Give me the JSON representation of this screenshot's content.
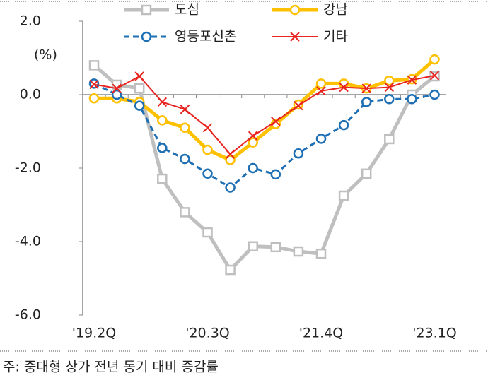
{
  "chart_data": {
    "type": "line",
    "y_label": "(%)",
    "footnote": "주: 중대형 상가 전년 동기 대비 증감률",
    "categories": [
      "'19.2Q",
      null,
      null,
      null,
      null,
      "'20.3Q",
      null,
      null,
      null,
      null,
      "'21.4Q",
      null,
      null,
      null,
      null,
      "'23.1Q"
    ],
    "series": [
      {
        "name": "도심",
        "color": "#bfbfbf",
        "values": [
          0.8,
          0.27,
          0.17,
          -2.29,
          -3.2,
          -3.75,
          -4.77,
          -4.13,
          -4.15,
          -4.27,
          -4.33,
          -2.75,
          -2.15,
          -1.21,
          0.0,
          0.5
        ]
      },
      {
        "name": "강남",
        "color": "#ffc000",
        "values": [
          -0.1,
          -0.1,
          -0.2,
          -0.7,
          -0.9,
          -1.5,
          -1.78,
          -1.3,
          -0.8,
          -0.27,
          0.3,
          0.3,
          0.17,
          0.38,
          0.42,
          0.96
        ]
      },
      {
        "name": "영등포신촌",
        "color": "#1f6fb4",
        "values": [
          0.3,
          0.0,
          -0.3,
          -1.45,
          -1.75,
          -2.15,
          -2.53,
          -2.0,
          -2.17,
          -1.6,
          -1.2,
          -0.83,
          -0.2,
          -0.12,
          -0.12,
          0.0
        ]
      },
      {
        "name": "기타",
        "color": "#e8231f",
        "values": [
          0.28,
          0.17,
          0.5,
          -0.2,
          -0.4,
          -0.9,
          -1.62,
          -1.12,
          -0.73,
          -0.3,
          0.1,
          0.2,
          0.17,
          0.2,
          0.4,
          0.52
        ]
      }
    ],
    "ylim": [
      -6,
      2
    ],
    "yticks": [
      {
        "value": 2,
        "label": "2.0"
      },
      {
        "value": 0,
        "label": "0.0"
      },
      {
        "value": -2,
        "label": "-2.0"
      },
      {
        "value": -4,
        "label": "-4.0"
      },
      {
        "value": -6,
        "label": "-6.0"
      }
    ]
  }
}
